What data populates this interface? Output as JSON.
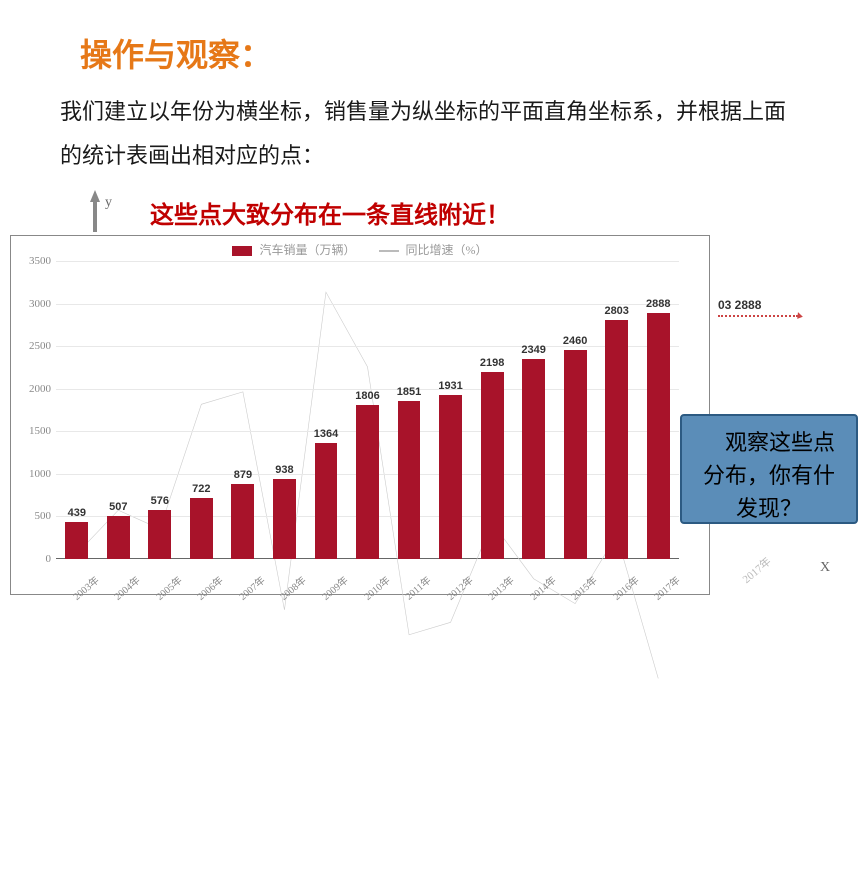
{
  "title": "操作与观察：",
  "body_text": "我们建立以年份为横坐标，销售量为纵坐标的平面直角坐标系，并根据上面的统计表画出相对应的点：",
  "callout": "这些点大致分布在一条直线附近！",
  "axis_y": "y",
  "axis_x": "X",
  "legend": {
    "bar_label": "汽车销量（万辆）",
    "line_label": "同比增速（%）"
  },
  "chart": {
    "type": "bar+line",
    "y_max": 3500,
    "y_ticks": [
      0,
      500,
      1000,
      1500,
      2000,
      2500,
      3000,
      3500
    ],
    "categories": [
      "2003年",
      "2004年",
      "2005年",
      "2006年",
      "2007年",
      "2008年",
      "2009年",
      "2010年",
      "2011年",
      "2012年",
      "2013年",
      "2014年",
      "2015年",
      "2016年",
      "2017年"
    ],
    "values": [
      439,
      507,
      576,
      722,
      879,
      938,
      1364,
      1806,
      1851,
      1931,
      2198,
      2349,
      2460,
      2803,
      2888
    ],
    "bar_color": "#a8132a",
    "grid_color": "#e8e8e8",
    "text_color": "#888",
    "line_color": "#cccccc",
    "growth_rel": [
      0.53,
      0.6,
      0.57,
      0.77,
      0.79,
      0.44,
      0.95,
      0.83,
      0.4,
      0.42,
      0.58,
      0.49,
      0.45,
      0.56,
      0.33
    ]
  },
  "right_fragment": "03  2888",
  "right_ghost_year": "2017年",
  "blue_box": {
    "line1": "观察这些点",
    "line2": "分布，你有什",
    "line3": "发现？"
  }
}
